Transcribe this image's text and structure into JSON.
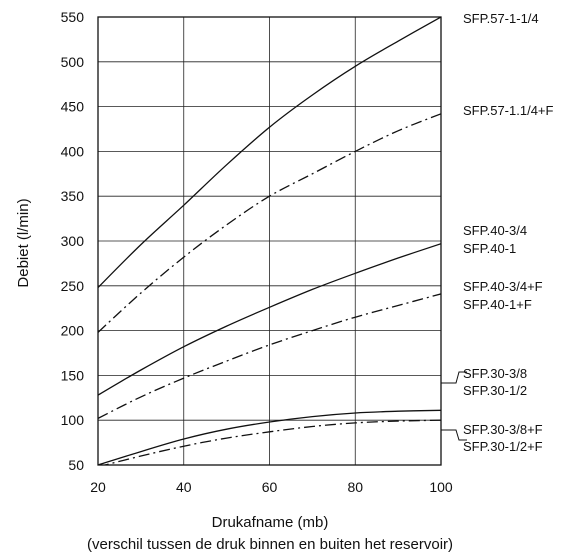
{
  "chart_data": {
    "type": "line",
    "title": "",
    "xlabel": "Drukafname (mb)",
    "xlabel_sub": "(verschil tussen de druk binnen en buiten het reservoir)",
    "ylabel": "Debiet (l/min)",
    "xlim": [
      20,
      100
    ],
    "ylim": [
      50,
      550
    ],
    "xticks": [
      20,
      40,
      60,
      80,
      100
    ],
    "yticks": [
      50,
      100,
      150,
      200,
      250,
      300,
      350,
      400,
      450,
      500,
      550
    ],
    "grid": true,
    "series": [
      {
        "labels": [
          "SFP.57-1-1/4"
        ],
        "style": "solid",
        "x": [
          20,
          30,
          40,
          50,
          60,
          70,
          80,
          90,
          100
        ],
        "y": [
          248,
          296,
          340,
          385,
          427,
          463,
          495,
          523,
          550
        ]
      },
      {
        "labels": [
          "SFP.57-1.1/4+F"
        ],
        "style": "dashdot",
        "x": [
          20,
          30,
          40,
          50,
          60,
          70,
          80,
          90,
          100
        ],
        "y": [
          198,
          242,
          282,
          318,
          350,
          375,
          400,
          423,
          442
        ]
      },
      {
        "labels": [
          "SFP.40-3/4",
          "SFP.40-1"
        ],
        "style": "solid",
        "x": [
          20,
          30,
          40,
          50,
          60,
          70,
          80,
          90,
          100
        ],
        "y": [
          128,
          156,
          182,
          205,
          226,
          246,
          264,
          281,
          297
        ]
      },
      {
        "labels": [
          "SFP.40-3/4+F",
          "SFP.40-1+F"
        ],
        "style": "dashdot",
        "x": [
          20,
          30,
          40,
          50,
          60,
          70,
          80,
          90,
          100
        ],
        "y": [
          102,
          126,
          147,
          166,
          184,
          200,
          215,
          228,
          241
        ]
      },
      {
        "labels": [
          "SFP.30-3/8",
          "SFP.30-1/2"
        ],
        "style": "solid",
        "x": [
          20,
          30,
          40,
          50,
          60,
          70,
          80,
          90,
          100
        ],
        "y": [
          50,
          65,
          79,
          90,
          98,
          104,
          108,
          110,
          111
        ]
      },
      {
        "labels": [
          "SFP.30-3/8+F",
          "SFP.30-1/2+F"
        ],
        "style": "dashdot",
        "x": [
          20,
          30,
          40,
          50,
          60,
          70,
          80,
          90,
          100
        ],
        "y": [
          48,
          60,
          71,
          80,
          87,
          93,
          97,
          99,
          100
        ]
      }
    ]
  }
}
